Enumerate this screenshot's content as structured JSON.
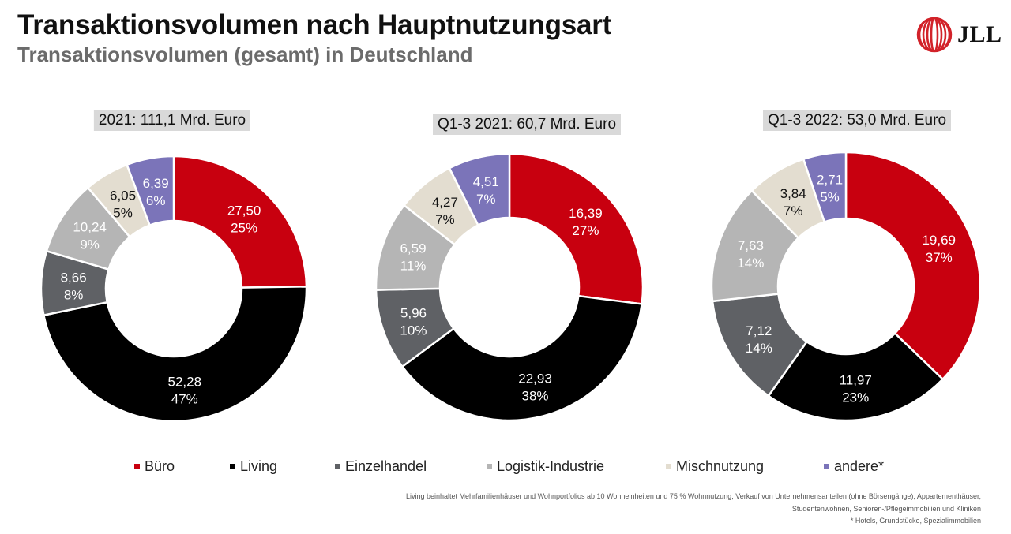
{
  "header": {
    "title": "Transaktionsvolumen nach Hauptnutzungsart",
    "subtitle": "Transaktionsvolumen (gesamt) in Deutschland",
    "logo_text": "JLL"
  },
  "colors": {
    "Büro": "#c8000f",
    "Living": "#000000",
    "Einzelhandel": "#5f6165",
    "Logistik-Industrie": "#b5b5b5",
    "Mischnutzung": "#e3ddd0",
    "andere*": "#7b74b9",
    "title_box": "#d9d9d9",
    "logo_red": "#d2232a"
  },
  "chart_data": [
    {
      "type": "pie",
      "title": "2021: 111,1 Mrd. Euro",
      "categories": [
        "Büro",
        "Living",
        "Einzelhandel",
        "Logistik-Industrie",
        "Mischnutzung",
        "andere*"
      ],
      "values": [
        27.5,
        52.28,
        8.66,
        10.24,
        6.05,
        6.39
      ],
      "value_labels": [
        "27,50",
        "52,28",
        "8,66",
        "10,24",
        "6,05",
        "6,39"
      ],
      "percent_labels": [
        "25%",
        "47%",
        "8%",
        "9%",
        "5%",
        "6%"
      ],
      "unit": "Mrd. Euro"
    },
    {
      "type": "pie",
      "title": "Q1-3 2021: 60,7 Mrd. Euro",
      "categories": [
        "Büro",
        "Living",
        "Einzelhandel",
        "Logistik-Industrie",
        "Mischnutzung",
        "andere*"
      ],
      "values": [
        16.39,
        22.93,
        5.96,
        6.59,
        4.27,
        4.51
      ],
      "value_labels": [
        "16,39",
        "22,93",
        "5,96",
        "6,59",
        "4,27",
        "4,51"
      ],
      "percent_labels": [
        "27%",
        "38%",
        "10%",
        "11%",
        "7%",
        "7%"
      ],
      "unit": "Mrd. Euro"
    },
    {
      "type": "pie",
      "title": "Q1-3 2022: 53,0 Mrd. Euro",
      "categories": [
        "Büro",
        "Living",
        "Einzelhandel",
        "Logistik-Industrie",
        "Mischnutzung",
        "andere*"
      ],
      "values": [
        19.69,
        11.97,
        7.12,
        7.63,
        3.84,
        2.71
      ],
      "value_labels": [
        "19,69",
        "11,97",
        "7,12",
        "7,63",
        "3,84",
        "2,71"
      ],
      "percent_labels": [
        "37%",
        "23%",
        "14%",
        "14%",
        "7%",
        "5%"
      ],
      "unit": "Mrd. Euro"
    }
  ],
  "legend": [
    "Büro",
    "Living",
    "Einzelhandel",
    "Logistik-Industrie",
    "Mischnutzung",
    "andere*"
  ],
  "footnotes": [
    "Living beinhaltet Mehrfamilienhäuser und Wohnportfolios ab 10 Wohneinheiten und 75 % Wohnnutzung, Verkauf von Unternehmensanteilen (ohne Börsengänge), Appartementhäuser,",
    "Studentenwohnen, Senioren-/Pflegeimmobilien und Kliniken",
    "* Hotels, Grundstücke, Spezialimmobilien"
  ]
}
